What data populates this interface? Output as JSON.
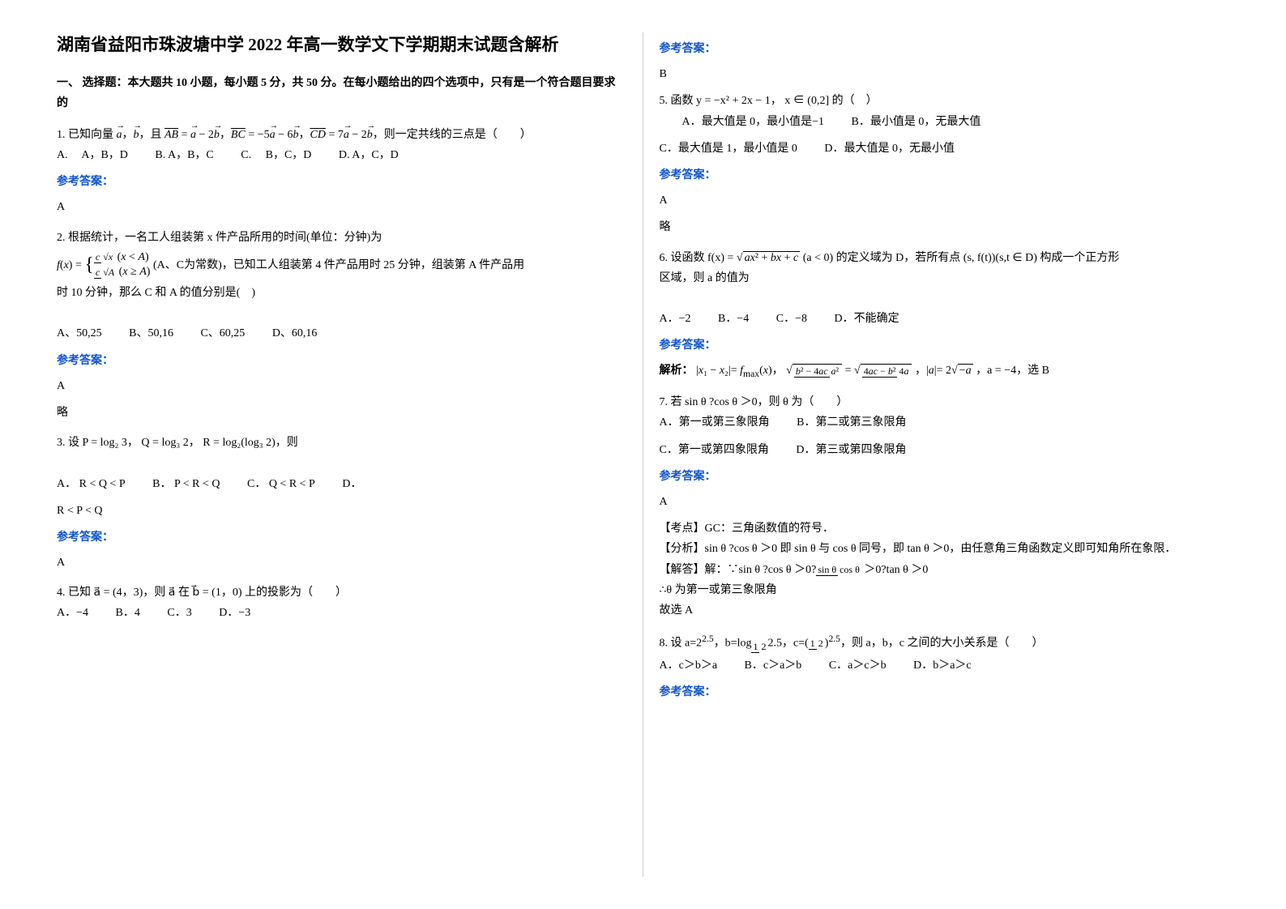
{
  "title": "湖南省益阳市珠波塘中学 2022 年高一数学文下学期期末试题含解析",
  "section1": "一、 选择题：本大题共 10 小题，每小题 5 分，共 50 分。在每小题给出的四个选项中，只有是一个符合题目要求的",
  "q1": {
    "stem_pre": "1. 已知向量",
    "stem_post": "，则一定共线的三点是（　　）",
    "optA": "A.　 A，B，D",
    "optB": "B. A，B，C",
    "optC": "C.　 B，C，D",
    "optD": "D. A，C，D",
    "ansLabel": "参考答案：",
    "ans": "A"
  },
  "q2": {
    "stem": "2. 根据统计，一名工人组装第 x 件产品所用的时间(单位：分钟)为",
    "formula_note": "(A、C为常数)",
    "stem2": "，已知工人组装第 4 件产品用时 25 分钟，组装第 A 件产品用",
    "stem3": "时 10 分钟，那么 C 和 A 的值分别是(　)",
    "optA": "A、50,25",
    "optB": "B、50,16",
    "optC": "C、60,25",
    "optD": "D、60,16",
    "ansLabel": "参考答案：",
    "ans": "A",
    "note": "略"
  },
  "q3": {
    "stem": "3. 设 P = log₂ 3， Q = log₃ 2， R = log₂(log₃ 2)，则",
    "optA": "A． R < Q < P",
    "optB": "B． P < R < Q",
    "optC": "C． Q < R < P",
    "optD": "D．",
    "optD2": "R < P < Q",
    "ansLabel": "参考答案：",
    "ans": "A"
  },
  "q4": {
    "stem": "4. 已知 a⃗ = (4，3)，则 a⃗ 在 b⃗ = (1，0) 上的投影为（　　）",
    "optA": "A．−4",
    "optB": "B．4",
    "optC": "C．3",
    "optD": "D．−3",
    "ansLabel": "参考答案：",
    "ans": "B"
  },
  "q5": {
    "stem": "5. 函数 y = −x² + 2x − 1， x ∈ (0,2] 的（　）",
    "optA": "A．最大值是 0，最小值是−1",
    "optB": "B．最小值是 0，无最大值",
    "optC": "C．最大值是 1，最小值是 0",
    "optD": "D．最大值是 0，无最小值",
    "ansLabel": "参考答案：",
    "ans": "A",
    "note": "略"
  },
  "q6": {
    "stem_pre": "6. 设函数 f(x) = ",
    "stem_mid": "(a < 0) 的定义域为 D，若所有点 (s, f(t))(s,t ∈ D) 构成一个正方形",
    "stem_post": "区域，则 a 的值为",
    "optA": "A．−2",
    "optB": "B．−4",
    "optC": "C．−8",
    "optD": "D．不能确定",
    "ansLabel": "参考答案：",
    "explain_pre": "解析：",
    "explain_post": "，a = −4，选 B"
  },
  "q7": {
    "stem": "7. 若 sin θ ?cos θ ＞0，则 θ 为（　　）",
    "optA": "A．第一或第三象限角",
    "optB": "B．第二或第三象限角",
    "optC": "C．第一或第四象限角",
    "optD": "D．第三或第四象限角",
    "ansLabel": "参考答案：",
    "ans": "A",
    "point": "【考点】GC：三角函数值的符号．",
    "analysis": "【分析】sin θ ?cos θ ＞0 即 sin θ 与 cos θ 同号，即 tan θ ＞0，由任意角三角函数定义即可知角所在象限．",
    "solve_pre": "【解答】解：∵sin θ ?cos θ ＞0?",
    "solve_post": "＞0?tan θ ＞0",
    "solve2": "∴θ 为第一或第三象限角",
    "solve3": "故选 A"
  },
  "q8": {
    "stem_pre": "8. 设 a=2",
    "stem_mid": "，b=log",
    "stem_mid2": "2.5，c=(",
    "stem_post": "，则 a，b，c 之间的大小关系是（　　）",
    "optA": "A．c＞b＞a",
    "optB": "B．c＞a＞b",
    "optC": "C．a＞c＞b",
    "optD": "D．b＞a＞c",
    "ansLabel": "参考答案："
  }
}
